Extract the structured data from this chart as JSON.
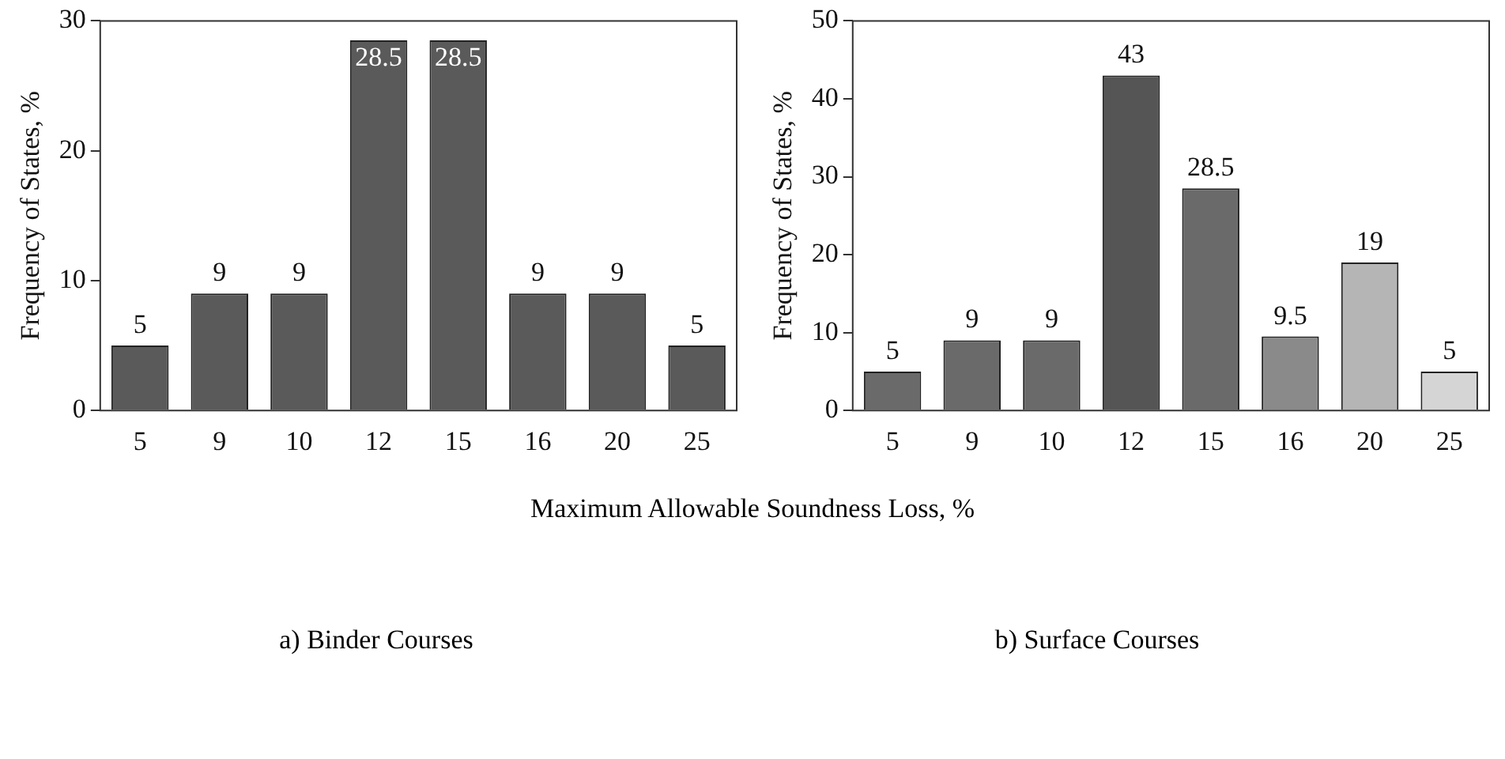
{
  "chart_data": [
    {
      "type": "bar",
      "xlabel": "Maximum Allowable Soundness Loss, %",
      "ylabel": "Frequency of States, %",
      "categories": [
        "5",
        "9",
        "10",
        "12",
        "15",
        "16",
        "20",
        "25"
      ],
      "values": [
        5,
        9,
        9,
        28.5,
        28.5,
        9,
        9,
        5
      ],
      "color": "#5a5a5a",
      "ylim": [
        0,
        30
      ],
      "yticks": [
        0,
        10,
        20,
        30
      ],
      "grid": false,
      "data_labels": true,
      "annotations": [
        "a) Binder Courses"
      ]
    },
    {
      "type": "bar",
      "ylabel": "Frequency of States, %",
      "categories": [
        "5",
        "9",
        "10",
        "12",
        "15",
        "16",
        "20",
        "25"
      ],
      "values": [
        5,
        9,
        9,
        43,
        28.5,
        9.5,
        19,
        5
      ],
      "colors": [
        "#6a6a6a",
        "#6a6a6a",
        "#6a6a6a",
        "#555555",
        "#6a6a6a",
        "#8a8a8a",
        "#b5b5b5",
        "#d5d5d5"
      ],
      "ylim": [
        0,
        50
      ],
      "yticks": [
        0,
        10,
        20,
        30,
        40,
        50
      ],
      "grid": false,
      "data_labels": true,
      "annotations": [
        "b) Surface Courses"
      ]
    }
  ]
}
